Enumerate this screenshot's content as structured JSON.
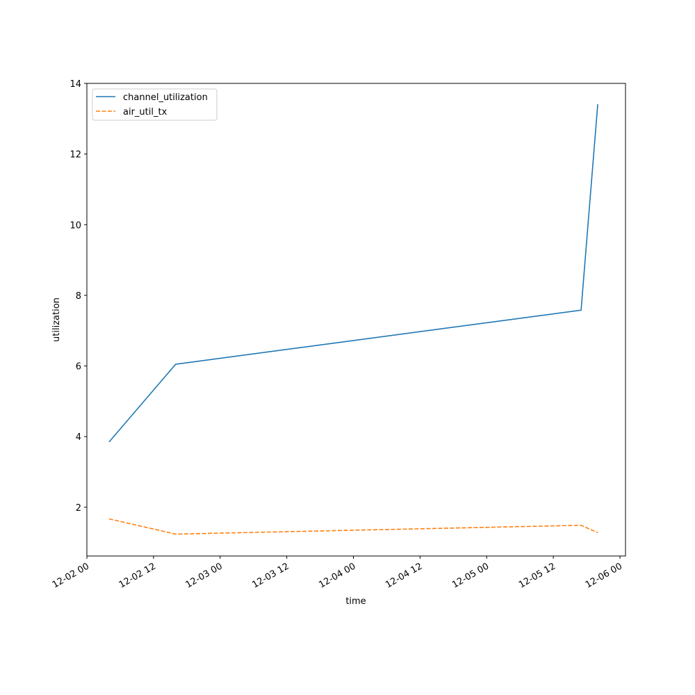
{
  "chart_data": {
    "type": "line",
    "xlabel": "time",
    "ylabel": "utilization",
    "x": [
      "12-02 04",
      "12-02 16",
      "12-05 17",
      "12-05 20"
    ],
    "series": [
      {
        "name": "channel_utilization",
        "color": "#1f77b4",
        "dash": "solid",
        "values": [
          3.85,
          6.05,
          7.58,
          13.41
        ]
      },
      {
        "name": "air_util_tx",
        "color": "#ff7f0e",
        "dash": "dashed",
        "values": [
          1.67,
          1.24,
          1.49,
          1.28
        ]
      }
    ],
    "xlim": [
      "12-02 00",
      "12-06 01"
    ],
    "xticks": [
      "12-02 00",
      "12-02 12",
      "12-03 00",
      "12-03 12",
      "12-04 00",
      "12-04 12",
      "12-05 00",
      "12-05 12",
      "12-06 00"
    ],
    "ylim": [
      0.62,
      14
    ],
    "yticks": [
      2,
      4,
      6,
      8,
      10,
      12,
      14
    ],
    "legend": "upper left"
  }
}
